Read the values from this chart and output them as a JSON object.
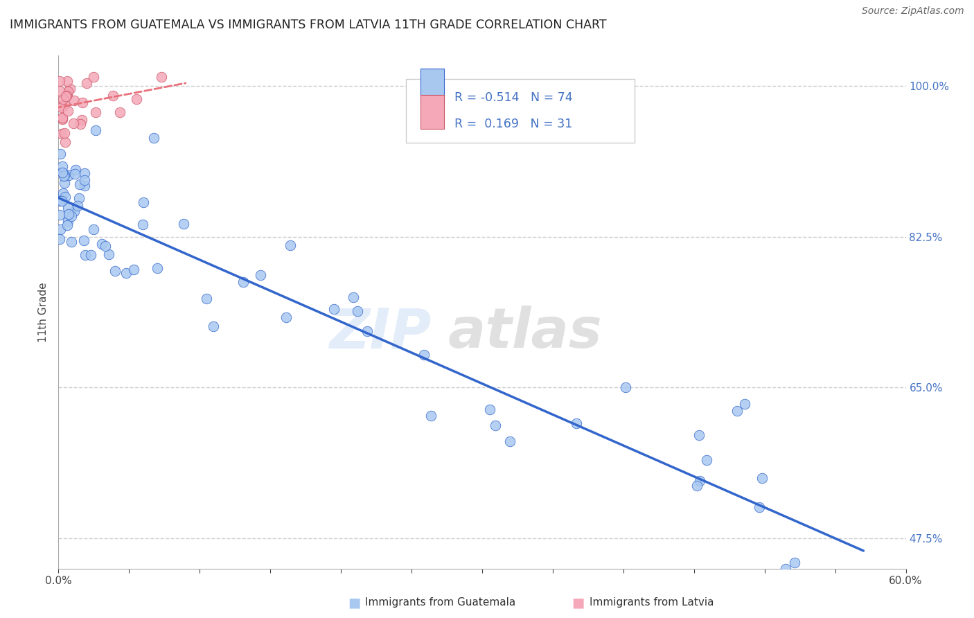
{
  "title": "IMMIGRANTS FROM GUATEMALA VS IMMIGRANTS FROM LATVIA 11TH GRADE CORRELATION CHART",
  "source": "Source: ZipAtlas.com",
  "ylabel": "11th Grade",
  "yticks": [
    47.5,
    65.0,
    82.5,
    100.0
  ],
  "ytick_labels": [
    "47.5%",
    "65.0%",
    "82.5%",
    "100.0%"
  ],
  "xlim": [
    0.0,
    60.0
  ],
  "ylim": [
    44.0,
    103.5
  ],
  "legend_R1": "-0.514",
  "legend_N1": "74",
  "legend_R2": "0.169",
  "legend_N2": "31",
  "color_guatemala": "#a8c8f0",
  "color_latvia": "#f4a8b8",
  "color_line_guatemala": "#3366cc",
  "color_line_latvia": "#e8707a",
  "watermark_zip": "ZIP",
  "watermark_atlas": "atlas"
}
